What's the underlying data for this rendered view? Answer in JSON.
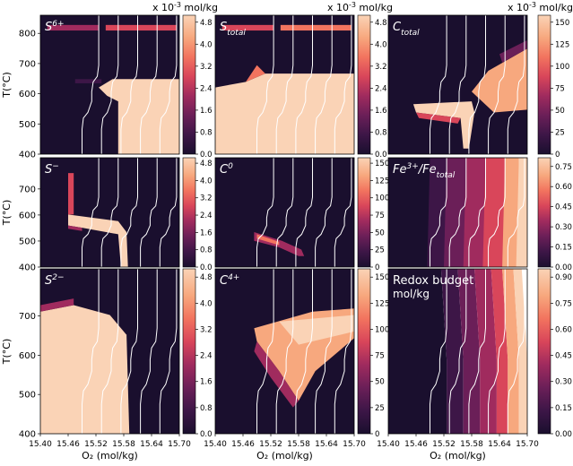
{
  "figure": {
    "colors": {
      "c0": "#1a0f2e",
      "c1": "#3d1647",
      "c2": "#6b1f58",
      "c3": "#a02b5e",
      "c4": "#d9465a",
      "c5": "#f2745f",
      "c6": "#f7a87e",
      "c7": "#fad3b6"
    },
    "isoline_color": "#ffffff"
  },
  "chart_data": [
    {
      "type": "heatmap",
      "label_main": "S",
      "label_sup": "6+",
      "label_sub": "",
      "label_tail": "",
      "label_line2": "",
      "unit_label": "x 10",
      "unit_exp": "-3",
      "unit_tail": " mol/kg",
      "ylabel": "T(°C)",
      "xlabel": "",
      "x_ticks": [],
      "y_ticks": [
        "400",
        "500",
        "600",
        "700",
        "800"
      ],
      "xlim": [
        15.4,
        15.7
      ],
      "ylim": [
        400,
        860
      ],
      "colorbar_ticks": [
        "0.0",
        "0.8",
        "1.6",
        "2.4",
        "3.2",
        "4.0",
        "4.8"
      ]
    },
    {
      "type": "heatmap",
      "label_main": "S",
      "label_sup": "",
      "label_sub": "total",
      "label_tail": "",
      "label_line2": "",
      "unit_label": "x 10",
      "unit_exp": "-3",
      "unit_tail": " mol/kg",
      "ylabel": "",
      "xlabel": "",
      "x_ticks": [],
      "y_ticks": [],
      "xlim": [
        15.4,
        15.7
      ],
      "ylim": [
        400,
        860
      ],
      "colorbar_ticks": [
        "0.0",
        "0.8",
        "1.6",
        "2.4",
        "3.2",
        "4.0",
        "4.8"
      ]
    },
    {
      "type": "heatmap",
      "label_main": "C",
      "label_sup": "",
      "label_sub": "total",
      "label_tail": "",
      "label_line2": "",
      "unit_label": "x 10",
      "unit_exp": "-3",
      "unit_tail": " mol/kg",
      "ylabel": "",
      "xlabel": "",
      "x_ticks": [],
      "y_ticks": [],
      "xlim": [
        15.4,
        15.7
      ],
      "ylim": [
        400,
        860
      ],
      "colorbar_ticks": [
        "0",
        "25",
        "50",
        "75",
        "100",
        "125",
        "150"
      ]
    },
    {
      "type": "heatmap",
      "label_main": "S",
      "label_sup": "−",
      "label_sub": "",
      "label_tail": "",
      "label_line2": "",
      "unit_label": "",
      "unit_exp": "",
      "unit_tail": "",
      "ylabel": "T(°C)",
      "xlabel": "",
      "x_ticks": [],
      "y_ticks": [
        "400",
        "500",
        "600",
        "700"
      ],
      "xlim": [
        15.4,
        15.7
      ],
      "ylim": [
        400,
        820
      ],
      "colorbar_ticks": [
        "0.0",
        "0.8",
        "1.6",
        "2.4",
        "3.2",
        "4.0",
        "4.8"
      ]
    },
    {
      "type": "heatmap",
      "label_main": "C",
      "label_sup": "0",
      "label_sub": "",
      "label_tail": "",
      "label_line2": "",
      "unit_label": "",
      "unit_exp": "",
      "unit_tail": "",
      "ylabel": "",
      "xlabel": "",
      "x_ticks": [],
      "y_ticks": [],
      "xlim": [
        15.4,
        15.7
      ],
      "ylim": [
        400,
        820
      ],
      "colorbar_ticks": [
        "0",
        "25",
        "50",
        "75",
        "100",
        "125",
        "150"
      ]
    },
    {
      "type": "heatmap",
      "label_main": "Fe",
      "label_sup": "3+",
      "label_sub": "",
      "label_tail": "/Fe",
      "label_tail_sub": "total",
      "label_line2": "",
      "unit_label": "",
      "unit_exp": "",
      "unit_tail": "",
      "ylabel": "",
      "xlabel": "",
      "x_ticks": [],
      "y_ticks": [],
      "xlim": [
        15.4,
        15.7
      ],
      "ylim": [
        400,
        820
      ],
      "colorbar_ticks": [
        "0.00",
        "0.15",
        "0.30",
        "0.45",
        "0.60",
        "0.75"
      ]
    },
    {
      "type": "heatmap",
      "label_main": "S",
      "label_sup": "2−",
      "label_sub": "",
      "label_tail": "",
      "label_line2": "",
      "unit_label": "",
      "unit_exp": "",
      "unit_tail": "",
      "ylabel": "T(°C)",
      "xlabel": "O₂ (mol/kg)",
      "x_ticks": [
        "15.40",
        "15.46",
        "15.52",
        "15.58",
        "15.64",
        "15.70"
      ],
      "y_ticks": [
        "400",
        "500",
        "600",
        "700"
      ],
      "xlim": [
        15.4,
        15.7
      ],
      "ylim": [
        400,
        820
      ],
      "colorbar_ticks": [
        "0.0",
        "0.8",
        "1.6",
        "2.4",
        "3.2",
        "4.0",
        "4.8"
      ]
    },
    {
      "type": "heatmap",
      "label_main": "C",
      "label_sup": "4+",
      "label_sub": "",
      "label_tail": "",
      "label_line2": "",
      "unit_label": "",
      "unit_exp": "",
      "unit_tail": "",
      "ylabel": "",
      "xlabel": "O₂ (mol/kg)",
      "x_ticks": [
        "15.40",
        "15.46",
        "15.52",
        "15.58",
        "15.64",
        "15.70"
      ],
      "y_ticks": [],
      "xlim": [
        15.4,
        15.7
      ],
      "ylim": [
        400,
        820
      ],
      "colorbar_ticks": [
        "0",
        "25",
        "50",
        "75",
        "100",
        "125",
        "150"
      ]
    },
    {
      "type": "heatmap",
      "label_main": "Redox budget",
      "label_sup": "",
      "label_sub": "",
      "label_tail": "",
      "label_line2": "mol/kg",
      "unit_label": "",
      "unit_exp": "",
      "unit_tail": "",
      "ylabel": "",
      "xlabel": "O₂ (mol/kg)",
      "x_ticks": [
        "15.40",
        "15.46",
        "15.52",
        "15.58",
        "15.64",
        "15.70"
      ],
      "y_ticks": [],
      "xlim": [
        15.4,
        15.7
      ],
      "ylim": [
        400,
        820
      ],
      "colorbar_ticks": [
        "0.00",
        "0.15",
        "0.30",
        "0.45",
        "0.60",
        "0.75",
        "0.90"
      ]
    }
  ]
}
